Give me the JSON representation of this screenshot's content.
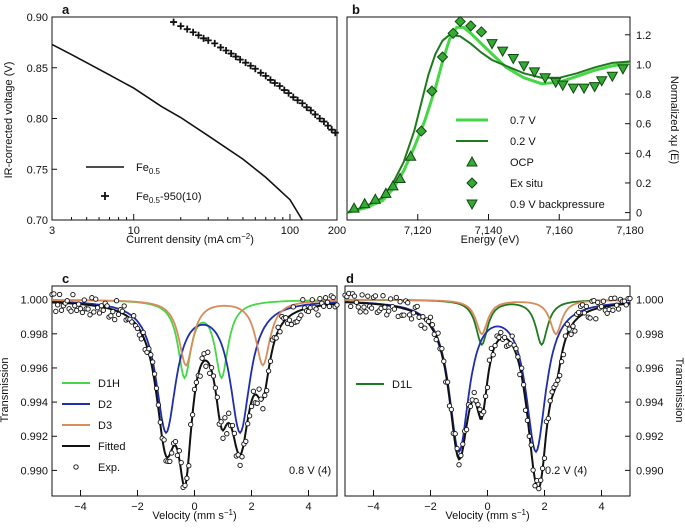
{
  "colors": {
    "black": "#111111",
    "green": "#46d646",
    "darkgreen": "#1f7a1f",
    "blue": "#1f2db0",
    "orange": "#d88c5a",
    "marker_fill": "#36a836",
    "marker_edge": "#0d4a0d"
  },
  "chart_data": [
    {
      "panel": "a",
      "type": "scatter",
      "xscale": "log",
      "xlim": [
        3,
        200
      ],
      "ylim": [
        0.7,
        0.9
      ],
      "xticks": [
        {
          "v": 3,
          "label": "3"
        },
        {
          "v": 10,
          "label": "10"
        },
        {
          "v": 100,
          "label": "100"
        },
        {
          "v": 200,
          "label": "200"
        }
      ],
      "yticks": [
        {
          "v": 0.7,
          "label": "0.70"
        },
        {
          "v": 0.75,
          "label": "0.75"
        },
        {
          "v": 0.8,
          "label": "0.80"
        },
        {
          "v": 0.85,
          "label": "0.85"
        },
        {
          "v": 0.9,
          "label": "0.90"
        }
      ],
      "xlabel": "Current density (mA cm",
      "xlabel_sup": "−2",
      "xlabel_end": ")",
      "ylabel": "IR-corrected voltage (V)",
      "series": [
        {
          "name": "Fe",
          "sub": "0.5",
          "legend_label": "Fe0.5",
          "style": "line",
          "color": "#111111",
          "x": [
            3,
            4,
            5,
            7,
            10,
            15,
            20,
            30,
            50,
            70,
            100,
            120
          ],
          "y": [
            0.873,
            0.863,
            0.855,
            0.843,
            0.83,
            0.812,
            0.801,
            0.783,
            0.76,
            0.742,
            0.72,
            0.7
          ]
        },
        {
          "name": "Fe",
          "sub": "0.5",
          "suffix": "-950(10)",
          "legend_label": "Fe0.5-950(10)",
          "style": "plus",
          "color": "#111111",
          "x": [
            18,
            20,
            22,
            24,
            26,
            28,
            30,
            33,
            36,
            39,
            42,
            45,
            48,
            52,
            56,
            60,
            65,
            70,
            75,
            80,
            86,
            92,
            98,
            105,
            112,
            120,
            128,
            136,
            145,
            155,
            165,
            175,
            185,
            195
          ],
          "y": [
            0.895,
            0.891,
            0.888,
            0.885,
            0.882,
            0.879,
            0.877,
            0.874,
            0.87,
            0.867,
            0.864,
            0.861,
            0.858,
            0.855,
            0.852,
            0.849,
            0.845,
            0.842,
            0.838,
            0.835,
            0.832,
            0.828,
            0.825,
            0.821,
            0.818,
            0.815,
            0.811,
            0.808,
            0.804,
            0.8,
            0.797,
            0.793,
            0.789,
            0.786
          ]
        }
      ]
    },
    {
      "panel": "b",
      "type": "line",
      "xlim": [
        7100,
        7180
      ],
      "ylim": [
        -0.05,
        1.32
      ],
      "xticks": [
        {
          "v": 7120,
          "label": "7,120"
        },
        {
          "v": 7140,
          "label": "7,140"
        },
        {
          "v": 7160,
          "label": "7,160"
        },
        {
          "v": 7180,
          "label": "7,180"
        }
      ],
      "yticks": [
        {
          "v": 0,
          "label": "0"
        },
        {
          "v": 0.2,
          "label": "0.2"
        },
        {
          "v": 0.4,
          "label": "0.4"
        },
        {
          "v": 0.6,
          "label": "0.6"
        },
        {
          "v": 0.8,
          "label": "0.8"
        },
        {
          "v": 1.0,
          "label": "1.0"
        },
        {
          "v": 1.2,
          "label": "1.2"
        }
      ],
      "xlabel": "Energy (eV)",
      "ylabel": "Normalized xμ (E)",
      "series": [
        {
          "name": "0.7 V",
          "style": "line",
          "color": "#46d646",
          "x": [
            7100,
            7105,
            7110,
            7113,
            7116,
            7119,
            7122,
            7125,
            7127,
            7129,
            7131,
            7133,
            7135,
            7138,
            7141,
            7145,
            7150,
            7155,
            7160,
            7165,
            7170,
            7175,
            7180
          ],
          "y": [
            0.0,
            0.03,
            0.08,
            0.16,
            0.28,
            0.44,
            0.62,
            0.84,
            1.02,
            1.17,
            1.25,
            1.25,
            1.21,
            1.14,
            1.07,
            0.98,
            0.91,
            0.87,
            0.88,
            0.92,
            0.96,
            0.99,
            1.01
          ]
        },
        {
          "name": "0.2 V",
          "style": "line",
          "color": "#1f7a1f",
          "x": [
            7100,
            7105,
            7110,
            7113,
            7116,
            7119,
            7121,
            7123,
            7125,
            7127,
            7129,
            7132,
            7135,
            7138,
            7141,
            7145,
            7150,
            7155,
            7160,
            7165,
            7170,
            7175,
            7180
          ],
          "y": [
            0.0,
            0.04,
            0.1,
            0.2,
            0.34,
            0.55,
            0.74,
            0.93,
            1.07,
            1.16,
            1.2,
            1.19,
            1.14,
            1.08,
            1.03,
            0.99,
            0.94,
            0.91,
            0.91,
            0.94,
            0.98,
            1.01,
            1.02
          ]
        },
        {
          "name": "OCP",
          "style": "triangle-up",
          "x": [
            7102,
            7105,
            7108,
            7111,
            7113,
            7115,
            7118
          ],
          "y": [
            0.03,
            0.06,
            0.09,
            0.13,
            0.18,
            0.23,
            0.38
          ]
        },
        {
          "name": "Ex situ",
          "style": "diamond",
          "x": [
            7121,
            7124,
            7127,
            7130,
            7132,
            7135,
            7138
          ],
          "y": [
            0.55,
            0.82,
            1.05,
            1.21,
            1.29,
            1.26,
            1.22
          ]
        },
        {
          "name": "0.9 V backpressure",
          "style": "triangle-down",
          "x": [
            7141,
            7144,
            7147,
            7150,
            7153,
            7156,
            7159,
            7161,
            7164,
            7167,
            7170,
            7172,
            7175,
            7178
          ],
          "y": [
            1.14,
            1.09,
            1.04,
            0.99,
            0.95,
            0.91,
            0.88,
            0.86,
            0.84,
            0.84,
            0.85,
            0.89,
            0.92,
            0.97
          ]
        }
      ]
    },
    {
      "panel": "c",
      "type": "line",
      "xlim": [
        -5,
        5
      ],
      "ylim": [
        0.9885,
        1.0008
      ],
      "xticks": [
        {
          "v": -4,
          "label": "−4"
        },
        {
          "v": -2,
          "label": "−2"
        },
        {
          "v": 0,
          "label": "0"
        },
        {
          "v": 2,
          "label": "2"
        },
        {
          "v": 4,
          "label": "4"
        }
      ],
      "yticks": [
        {
          "v": 0.99,
          "label": "0.990"
        },
        {
          "v": 0.992,
          "label": "0.992"
        },
        {
          "v": 0.994,
          "label": "0.994"
        },
        {
          "v": 0.996,
          "label": "0.996"
        },
        {
          "v": 0.998,
          "label": "0.998"
        },
        {
          "v": 1.0,
          "label": "1.000"
        }
      ],
      "xlabel": "Velocity (mm s",
      "xlabel_sup": "−1",
      "xlabel_end": ")",
      "ylabel": "Transmission",
      "annotation": "0.8 V (4)",
      "components": [
        {
          "name": "D1H",
          "color": "#46d646",
          "lines": [
            {
              "c": -0.35,
              "d": 0.0044,
              "w": 0.55
            },
            {
              "c": 0.95,
              "d": 0.0044,
              "w": 0.55
            }
          ]
        },
        {
          "name": "D2",
          "color": "#1f2db0",
          "lines": [
            {
              "c": -1.0,
              "d": 0.0076,
              "w": 0.85
            },
            {
              "c": 1.6,
              "d": 0.0076,
              "w": 0.85
            }
          ]
        },
        {
          "name": "D3",
          "color": "#d88c5a",
          "lines": [
            {
              "c": -0.3,
              "d": 0.0038,
              "w": 0.6
            },
            {
              "c": 2.4,
              "d": 0.0038,
              "w": 0.6
            }
          ]
        }
      ],
      "legend": [
        "D1H",
        "D2",
        "D3",
        "Fitted",
        "Exp."
      ]
    },
    {
      "panel": "d",
      "type": "line",
      "xlim": [
        -5,
        5
      ],
      "ylim": [
        0.9885,
        1.0008
      ],
      "xticks": [
        {
          "v": -4,
          "label": "−4"
        },
        {
          "v": -2,
          "label": "−2"
        },
        {
          "v": 0,
          "label": "0"
        },
        {
          "v": 2,
          "label": "2"
        },
        {
          "v": 4,
          "label": "4"
        }
      ],
      "yticks": [
        {
          "v": 0.99,
          "label": "0.990"
        },
        {
          "v": 0.992,
          "label": "0.992"
        },
        {
          "v": 0.994,
          "label": "0.994"
        },
        {
          "v": 0.996,
          "label": "0.996"
        },
        {
          "v": 0.998,
          "label": "0.998"
        },
        {
          "v": 1.0,
          "label": "1.000"
        }
      ],
      "xlabel": "Velocity (mm s",
      "xlabel_sup": "−1",
      "xlabel_end": ")",
      "ylabel": "Transmission",
      "annotation": "0.2 V (4)",
      "components": [
        {
          "name": "D1L",
          "color": "#1f7a1f",
          "lines": [
            {
              "c": -0.2,
              "d": 0.0026,
              "w": 0.5
            },
            {
              "c": 1.9,
              "d": 0.0026,
              "w": 0.5
            }
          ]
        },
        {
          "name": "D2",
          "color": "#1f2db0",
          "lines": [
            {
              "c": -1.0,
              "d": 0.0087,
              "w": 0.85
            },
            {
              "c": 1.7,
              "d": 0.0087,
              "w": 0.85
            }
          ]
        },
        {
          "name": "D3",
          "color": "#d88c5a",
          "lines": [
            {
              "c": -0.2,
              "d": 0.002,
              "w": 0.5
            },
            {
              "c": 2.4,
              "d": 0.002,
              "w": 0.5
            }
          ]
        }
      ],
      "legend": [
        "D1L"
      ]
    }
  ]
}
